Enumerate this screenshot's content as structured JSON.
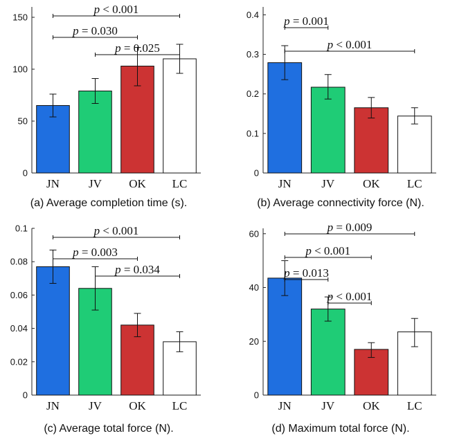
{
  "colors": {
    "JN": "#1f6fe0",
    "JV": "#1fcc76",
    "OK": "#cc3333",
    "LC": "#ffffff",
    "axis": "#222222"
  },
  "chart_data": [
    {
      "type": "bar",
      "caption": "(a) Average completion time (s).",
      "categories": [
        "JN",
        "JV",
        "OK",
        "LC"
      ],
      "values": [
        65,
        79,
        103,
        110
      ],
      "errors": [
        [
          54,
          76
        ],
        [
          67,
          91
        ],
        [
          84,
          121
        ],
        [
          96,
          124
        ]
      ],
      "ylim": [
        0,
        160
      ],
      "yticks": [
        0,
        50,
        100,
        150
      ],
      "ytick_labels": [
        "0",
        "50",
        "100",
        "150"
      ],
      "annotations": [
        {
          "from": "JN",
          "to": "LC",
          "text": "p < 0.001"
        },
        {
          "from": "JN",
          "to": "OK",
          "text": "p = 0.030"
        },
        {
          "from": "JV",
          "to": "LC",
          "text": "p = 0.025"
        }
      ]
    },
    {
      "type": "bar",
      "caption": "(b) Average connectivity force (N).",
      "categories": [
        "JN",
        "JV",
        "OK",
        "LC"
      ],
      "values": [
        0.279,
        0.217,
        0.165,
        0.144
      ],
      "errors": [
        [
          0.236,
          0.322
        ],
        [
          0.187,
          0.249
        ],
        [
          0.139,
          0.191
        ],
        [
          0.124,
          0.165
        ]
      ],
      "ylim": [
        0,
        0.42
      ],
      "yticks": [
        0,
        0.1,
        0.2,
        0.3,
        0.4
      ],
      "ytick_labels": [
        "0",
        "0.1",
        "0.2",
        "0.3",
        "0.4"
      ],
      "annotations": [
        {
          "from": "JN",
          "to": "JV",
          "text": "p = 0.001"
        },
        {
          "from": "JN",
          "to": "LC",
          "text": "p < 0.001"
        }
      ]
    },
    {
      "type": "bar",
      "caption": "(c) Average total force (N).",
      "categories": [
        "JN",
        "JV",
        "OK",
        "LC"
      ],
      "values": [
        0.077,
        0.064,
        0.042,
        0.032
      ],
      "errors": [
        [
          0.067,
          0.087
        ],
        [
          0.051,
          0.077
        ],
        [
          0.035,
          0.049
        ],
        [
          0.026,
          0.038
        ]
      ],
      "ylim": [
        0,
        0.1
      ],
      "yticks": [
        0,
        0.02,
        0.04,
        0.06,
        0.08,
        0.1
      ],
      "ytick_labels": [
        "0",
        "0.02",
        "0.04",
        "0.06",
        "0.08",
        "0.1"
      ],
      "annotations": [
        {
          "from": "JN",
          "to": "LC",
          "text": "p < 0.001"
        },
        {
          "from": "JN",
          "to": "OK",
          "text": "p = 0.003"
        },
        {
          "from": "JV",
          "to": "LC",
          "text": "p = 0.034"
        }
      ]
    },
    {
      "type": "bar",
      "caption": "(d) Maximum total force (N).",
      "categories": [
        "JN",
        "JV",
        "OK",
        "LC"
      ],
      "values": [
        43.5,
        32,
        17,
        23.5
      ],
      "errors": [
        [
          37,
          50
        ],
        [
          27.5,
          36.5
        ],
        [
          14,
          19.5
        ],
        [
          18,
          28.5
        ]
      ],
      "ylim": [
        0,
        62
      ],
      "yticks": [
        0,
        20,
        40,
        60
      ],
      "ytick_labels": [
        "0",
        "20",
        "40",
        "60"
      ],
      "annotations": [
        {
          "from": "JN",
          "to": "LC",
          "text": "p = 0.009"
        },
        {
          "from": "JN",
          "to": "OK",
          "text": "p < 0.001"
        },
        {
          "from": "JN",
          "to": "JV",
          "text": "p = 0.013"
        },
        {
          "from": "JV",
          "to": "OK",
          "text": "p < 0.001"
        }
      ]
    }
  ]
}
